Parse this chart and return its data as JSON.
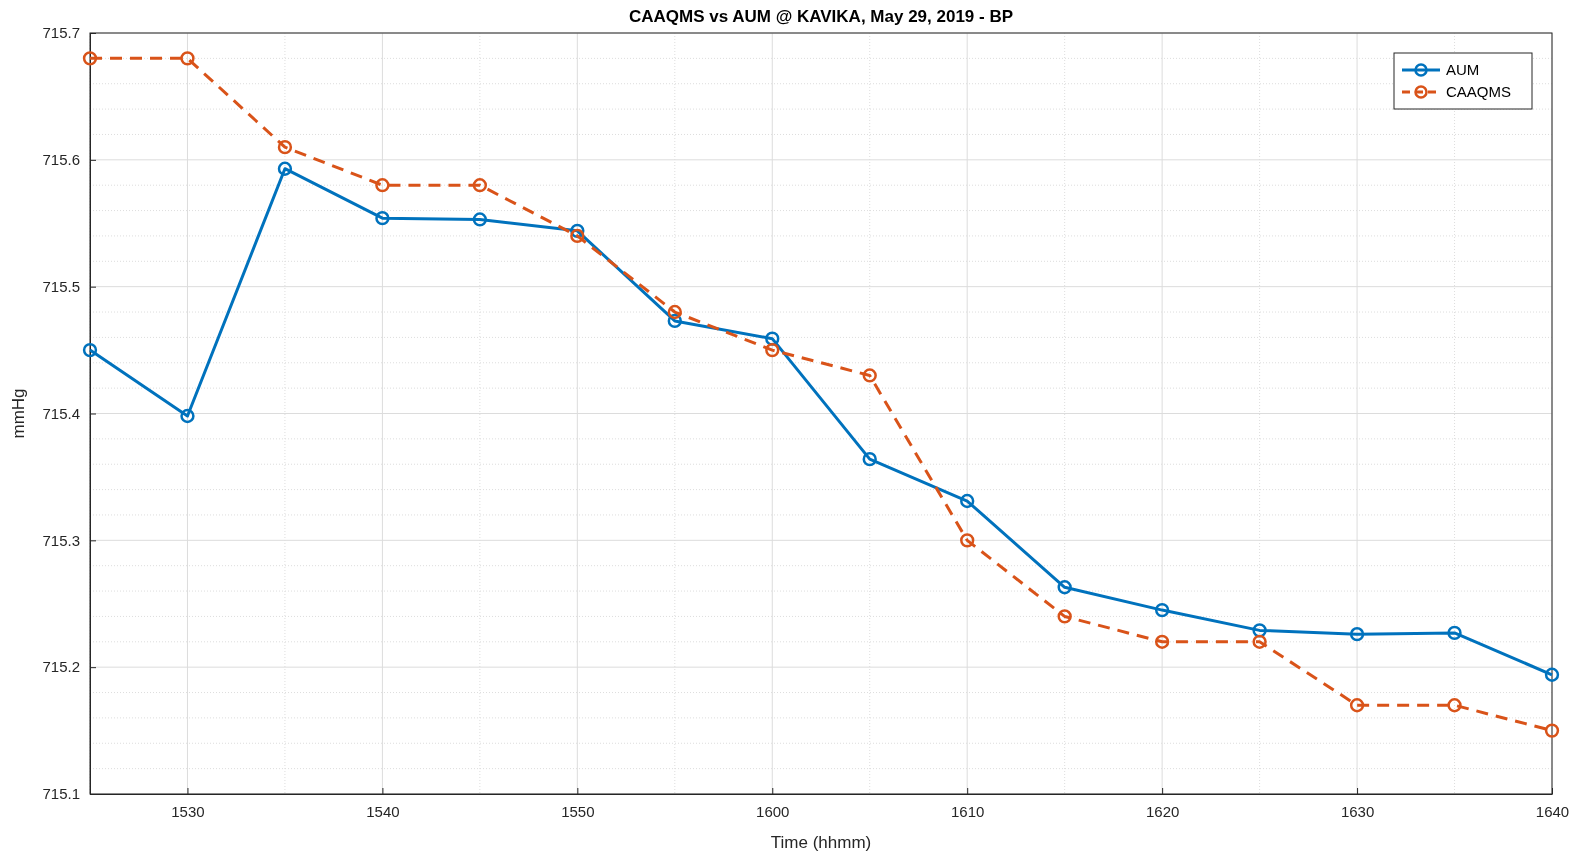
{
  "chart_data": {
    "type": "line",
    "title": "CAAQMS vs AUM @ KAVIKA, May 29, 2019 - BP",
    "xlabel": "Time (hhmm)",
    "ylabel": "mmHg",
    "categories": [
      null,
      "1530",
      null,
      "1540",
      null,
      "1550",
      null,
      "1600",
      null,
      "1610",
      null,
      "1620",
      null,
      "1630",
      null,
      "1640"
    ],
    "series": [
      {
        "name": "AUM",
        "color": "#0072bd",
        "line_style": "solid",
        "values": [
          715.45,
          715.398,
          715.593,
          715.554,
          715.553,
          715.544,
          715.473,
          715.459,
          715.364,
          715.331,
          715.263,
          715.245,
          715.229,
          715.226,
          715.227,
          715.194
        ]
      },
      {
        "name": "CAAQMS",
        "color": "#d95319",
        "line_style": "dashed",
        "values": [
          715.68,
          715.68,
          715.61,
          715.58,
          715.58,
          715.54,
          715.48,
          715.45,
          715.43,
          715.3,
          715.24,
          715.22,
          715.22,
          715.17,
          715.17,
          715.15
        ]
      }
    ],
    "ylim": [
      715.1,
      715.7
    ],
    "yticks": [
      715.1,
      715.2,
      715.3,
      715.4,
      715.5,
      715.6,
      715.7
    ],
    "grid": true,
    "legend": "top right",
    "marker": "circle"
  }
}
